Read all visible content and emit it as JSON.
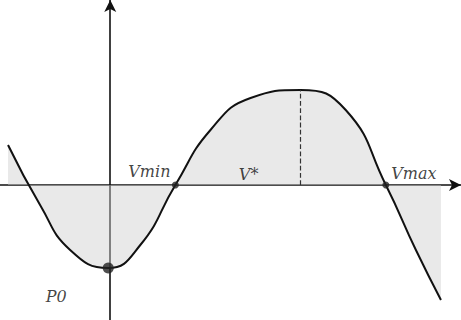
{
  "chart_data": {
    "type": "line",
    "x": [
      -2.04,
      -1.4,
      -0.8,
      -0.04,
      0.6,
      1.3,
      2.0,
      2.8,
      3.8,
      4.7,
      5.5,
      6.1,
      6.6
    ],
    "values": [
      0.8,
      -0.4,
      -1.3,
      -1.66,
      -1.2,
      0,
      1.1,
      1.74,
      1.9,
      1.5,
      0,
      -1.3,
      -2.3
    ],
    "color": "#111111",
    "xlim": [
      -2.2,
      7.0
    ],
    "ylim": [
      -2.7,
      3.7
    ],
    "xticks": [],
    "yticks": [],
    "tick_labels": false,
    "grid": false,
    "annotations": [
      {
        "text": "Vmin",
        "x": 1.3,
        "y": 0,
        "marker": "circle"
      },
      {
        "text": "Vmax",
        "x": 5.5,
        "y": 0,
        "marker": "circle"
      },
      {
        "text": "V*",
        "x": 3.8,
        "y": 1.9,
        "marker": "none",
        "line_style": "dashed"
      },
      {
        "text": "P0",
        "x": -0.04,
        "y": -1.66,
        "marker": "circle"
      }
    ]
  }
}
